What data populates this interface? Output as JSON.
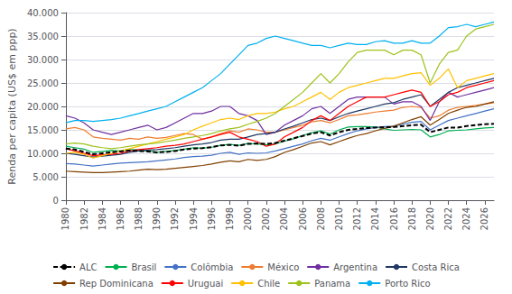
{
  "chart_data": {
    "type": "line",
    "x": [
      1980,
      1981,
      1982,
      1983,
      1984,
      1985,
      1986,
      1987,
      1988,
      1989,
      1990,
      1991,
      1992,
      1993,
      1994,
      1995,
      1996,
      1997,
      1998,
      1999,
      2000,
      2001,
      2002,
      2003,
      2004,
      2005,
      2006,
      2007,
      2008,
      2009,
      2010,
      2011,
      2012,
      2013,
      2014,
      2015,
      2016,
      2017,
      2018,
      2019,
      2020,
      2021,
      2022,
      2023,
      2024,
      2025,
      2026,
      2027
    ],
    "ylabel": "Renda per capita (US$ em ppp)",
    "xlim": [
      1980,
      2027
    ],
    "xticks": [
      1980,
      1982,
      1984,
      1986,
      1988,
      1990,
      1992,
      1994,
      1996,
      1998,
      2000,
      2002,
      2004,
      2006,
      2008,
      2010,
      2012,
      2014,
      2016,
      2018,
      2020,
      2022,
      2024,
      2026
    ],
    "ylim": [
      0,
      40000
    ],
    "yticks": [
      0,
      {
        "value": 5000,
        "label": "5.000"
      },
      {
        "value": 10000,
        "label": "10.000"
      },
      {
        "value": 15000,
        "label": "15.000"
      },
      {
        "value": 20000,
        "label": "20.000"
      },
      {
        "value": 25000,
        "label": "25.000"
      },
      {
        "value": 30000,
        "label": "30.000"
      },
      {
        "value": 35000,
        "label": "35.000"
      },
      {
        "value": 40000,
        "label": "40.000"
      }
    ],
    "grid": true,
    "legend": "bottom",
    "series": [
      {
        "name": "ALC",
        "color": "#000000",
        "line_style": "dashed",
        "values": [
          11000,
          10800,
          10300,
          9800,
          10000,
          10200,
          10400,
          10600,
          10500,
          10400,
          10200,
          10300,
          10500,
          10800,
          11000,
          11100,
          11300,
          11700,
          11800,
          11600,
          12000,
          12100,
          12000,
          12200,
          12700,
          13200,
          13700,
          14200,
          14500,
          13800,
          14500,
          15000,
          15200,
          15400,
          15500,
          15600,
          15600,
          15800,
          16000,
          16100,
          14500,
          15000,
          15500,
          15500,
          15800,
          16000,
          16200,
          16300
        ]
      },
      {
        "name": "Brasil",
        "color": "#00b050",
        "line_style": "solid",
        "values": [
          11500,
          11200,
          10900,
          10200,
          10400,
          10600,
          10500,
          10800,
          10700,
          10500,
          10200,
          10400,
          10600,
          10900,
          11200,
          11100,
          11300,
          11700,
          11900,
          11700,
          12100,
          12000,
          11800,
          12000,
          12600,
          13100,
          13800,
          14400,
          14800,
          14100,
          15000,
          15600,
          15700,
          15700,
          15600,
          15200,
          14900,
          15000,
          15100,
          15000,
          13500,
          14000,
          14800,
          14900,
          15000,
          15200,
          15400,
          15500
        ]
      },
      {
        "name": "Colômbia",
        "color": "#4472c4",
        "line_style": "solid",
        "values": [
          7800,
          7700,
          7500,
          7300,
          7500,
          7700,
          7900,
          8000,
          8100,
          8200,
          8400,
          8600,
          8800,
          9100,
          9300,
          9400,
          9600,
          10000,
          10200,
          9800,
          10100,
          10000,
          10100,
          10500,
          11000,
          11500,
          12000,
          12700,
          13200,
          12800,
          13500,
          14200,
          14800,
          15200,
          15500,
          15700,
          15800,
          16200,
          16600,
          16800,
          15000,
          16000,
          17000,
          17500,
          18000,
          18500,
          19000,
          19500
        ]
      },
      {
        "name": "México",
        "color": "#ed7d31",
        "line_style": "solid",
        "values": [
          15200,
          15500,
          15000,
          13500,
          13200,
          13000,
          12800,
          13200,
          13000,
          13500,
          13200,
          13400,
          13800,
          14200,
          14000,
          13000,
          13500,
          14200,
          14800,
          14500,
          15200,
          15000,
          14500,
          14500,
          15000,
          15500,
          16000,
          16700,
          17000,
          16500,
          17200,
          18000,
          18200,
          18500,
          18800,
          19000,
          19200,
          19800,
          20000,
          19800,
          17500,
          18000,
          19200,
          19800,
          20000,
          20200,
          20500,
          20800
        ]
      },
      {
        "name": "Argentina",
        "color": "#7030a0",
        "line_style": "solid",
        "values": [
          18000,
          17500,
          16500,
          15000,
          14500,
          14000,
          14500,
          15000,
          15500,
          16000,
          15000,
          15500,
          16500,
          17500,
          18500,
          18500,
          19000,
          20000,
          20000,
          18500,
          18000,
          17000,
          14000,
          14500,
          16000,
          17000,
          18000,
          19500,
          20000,
          18500,
          20000,
          21500,
          22000,
          22000,
          22000,
          22000,
          20500,
          21000,
          21000,
          20000,
          17000,
          21000,
          23000,
          22000,
          22500,
          23000,
          23500,
          24000
        ]
      },
      {
        "name": "Costa Rica",
        "color": "#1f3864",
        "line_style": "solid",
        "values": [
          10000,
          9800,
          9500,
          9200,
          9400,
          9600,
          9800,
          10200,
          10500,
          10700,
          10800,
          11000,
          11200,
          11500,
          11800,
          12000,
          12300,
          12800,
          13000,
          13000,
          13500,
          14000,
          14200,
          14500,
          15200,
          15800,
          16500,
          17200,
          17500,
          17000,
          17800,
          18500,
          19000,
          19500,
          20000,
          20500,
          20800,
          21500,
          22000,
          22500,
          20000,
          21500,
          23000,
          24000,
          24500,
          25000,
          25500,
          26000
        ]
      },
      {
        "name": "Rep Dominicana",
        "color": "#7f3f00",
        "line_style": "solid",
        "values": [
          6200,
          6100,
          6000,
          5900,
          5900,
          6000,
          6100,
          6200,
          6400,
          6600,
          6500,
          6600,
          6800,
          7000,
          7200,
          7400,
          7700,
          8100,
          8400,
          8200,
          8700,
          8500,
          8700,
          9300,
          10200,
          10800,
          11500,
          12200,
          12500,
          11800,
          12500,
          13200,
          13800,
          14200,
          14800,
          15300,
          15800,
          16500,
          17200,
          17800,
          16000,
          17200,
          18500,
          19200,
          19800,
          20000,
          20500,
          21000
        ]
      },
      {
        "name": "Uruguai",
        "color": "#ff0000",
        "line_style": "solid",
        "values": [
          11000,
          10500,
          10000,
          9500,
          9700,
          9800,
          10000,
          10500,
          10800,
          11000,
          11200,
          11500,
          11700,
          12000,
          12500,
          13000,
          13500,
          14000,
          14500,
          13500,
          13000,
          12500,
          11500,
          12000,
          13500,
          14500,
          15500,
          17000,
          18000,
          17000,
          18500,
          20000,
          21000,
          22000,
          22000,
          22000,
          22500,
          23000,
          23500,
          23000,
          20000,
          21000,
          22500,
          23000,
          24000,
          24500,
          25000,
          25500
        ]
      },
      {
        "name": "Chile",
        "color": "#ffc000",
        "line_style": "solid",
        "values": [
          10000,
          10200,
          9800,
          9000,
          9500,
          10000,
          10500,
          11000,
          11500,
          12000,
          12500,
          13000,
          13500,
          14000,
          15000,
          15800,
          16500,
          17200,
          17500,
          17200,
          18000,
          18500,
          18500,
          18800,
          19500,
          20000,
          21000,
          22000,
          23000,
          21500,
          23000,
          24000,
          24500,
          25000,
          25500,
          26000,
          26000,
          26500,
          27000,
          27200,
          24500,
          26000,
          28000,
          24000,
          25500,
          26000,
          26500,
          27000
        ]
      },
      {
        "name": "Panama",
        "color": "#9dc219",
        "line_style": "solid",
        "values": [
          12000,
          12200,
          12000,
          11500,
          11200,
          11000,
          11200,
          11500,
          11800,
          12000,
          12200,
          12500,
          12800,
          13200,
          13500,
          13800,
          14200,
          14800,
          15200,
          15500,
          16200,
          16800,
          17500,
          18500,
          20000,
          21500,
          23000,
          25000,
          27000,
          25000,
          27000,
          29500,
          31500,
          32000,
          32000,
          32000,
          31000,
          32000,
          32000,
          31000,
          25000,
          29000,
          31500,
          32000,
          35000,
          36500,
          37000,
          37500
        ]
      },
      {
        "name": "Porto Rico",
        "color": "#00b0f0",
        "line_style": "solid",
        "values": [
          16500,
          17000,
          17000,
          16800,
          17000,
          17200,
          17500,
          18000,
          18500,
          19000,
          19500,
          20000,
          21000,
          22000,
          23000,
          24000,
          25500,
          27000,
          29000,
          31000,
          33000,
          33500,
          34500,
          35000,
          34500,
          34000,
          33500,
          33000,
          33000,
          32500,
          33000,
          33500,
          33200,
          33200,
          33800,
          34000,
          33500,
          33500,
          34000,
          33500,
          33500,
          35000,
          36800,
          37000,
          37500,
          37000,
          37500,
          38000
        ]
      }
    ]
  }
}
